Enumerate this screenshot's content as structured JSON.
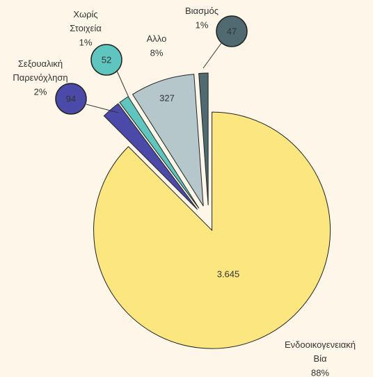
{
  "chart_data": {
    "type": "pie",
    "categories": [
      "Ενδοοικογενειακή Βία",
      "Σεξουαλική Παρενόχληση",
      "Χωρίς Στοιχεία",
      "Αλλο",
      "Βιασμός"
    ],
    "values": [
      3645,
      94,
      52,
      327,
      47
    ],
    "value_labels": [
      "3.645",
      "94",
      "52",
      "327",
      "47"
    ],
    "percent_labels": [
      "88%",
      "2%",
      "1%",
      "8%",
      "1%"
    ],
    "colors": [
      "#fbe680",
      "#4b4aa8",
      "#5ec6bf",
      "#b5c7cb",
      "#4f6b71"
    ]
  }
}
